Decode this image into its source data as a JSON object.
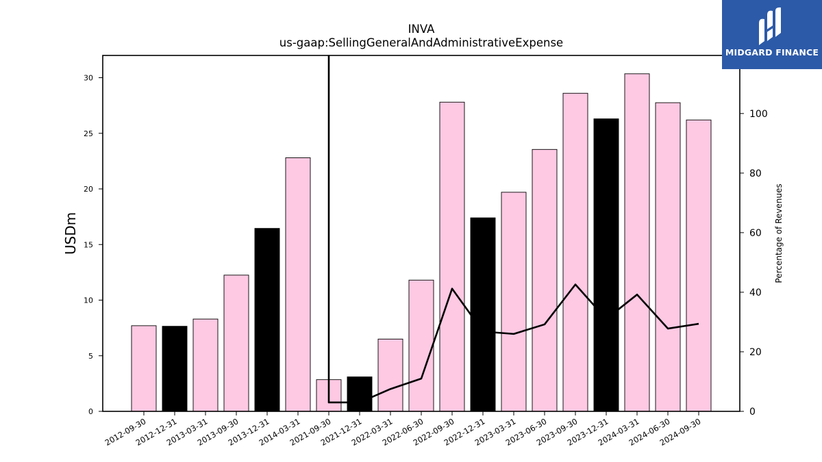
{
  "chart_data": {
    "type": "bar",
    "title": "INVA",
    "subtitle": "us-gaap:SellingGeneralAndAdministrativeExpense",
    "ylabel": "USDm",
    "y2label": "Percentage of Revenues",
    "ylim": [
      0,
      32
    ],
    "y2lim": [
      0,
      119.5
    ],
    "yticks": [
      0,
      5,
      10,
      15,
      20,
      25,
      30
    ],
    "y2ticks": [
      0,
      20,
      40,
      60,
      80,
      100
    ],
    "grid": false,
    "legend": "none",
    "categories": [
      "2012-09-30",
      "2012-12-31",
      "2013-03-31",
      "2013-09-30",
      "2013-12-31",
      "2014-03-31",
      "2021-09-30",
      "2021-12-31",
      "2022-03-31",
      "2022-06-30",
      "2022-09-30",
      "2022-12-31",
      "2023-03-31",
      "2023-06-30",
      "2023-09-30",
      "2023-12-31",
      "2024-03-31",
      "2024-06-30",
      "2024-09-30"
    ],
    "series": [
      {
        "type": "bar",
        "values": [
          7.7,
          7.65,
          8.3,
          12.25,
          16.45,
          22.8,
          2.85,
          3.1,
          6.5,
          11.8,
          27.8,
          17.4,
          19.7,
          23.55,
          28.6,
          26.3,
          30.35,
          27.75,
          26.2
        ],
        "colors": [
          "#fdc9e3",
          "#000000",
          "#fdc9e3",
          "#fdc9e3",
          "#000000",
          "#fdc9e3",
          "#fdc9e3",
          "#000000",
          "#fdc9e3",
          "#fdc9e3",
          "#fdc9e3",
          "#000000",
          "#fdc9e3",
          "#fdc9e3",
          "#fdc9e3",
          "#000000",
          "#fdc9e3",
          "#fdc9e3",
          "#fdc9e3"
        ]
      },
      {
        "type": "line",
        "axis": "right",
        "values": [
          null,
          null,
          null,
          null,
          null,
          null,
          3.0,
          3.0,
          7.5,
          11.0,
          41.2,
          26.8,
          26.0,
          29.2,
          42.6,
          31.0,
          39.2,
          27.8,
          29.4
        ],
        "offscale_start": true,
        "color": "#000000"
      }
    ]
  },
  "logo": {
    "text": "MIDGARD FINANCE",
    "bg_color": "#2c5aa8"
  }
}
